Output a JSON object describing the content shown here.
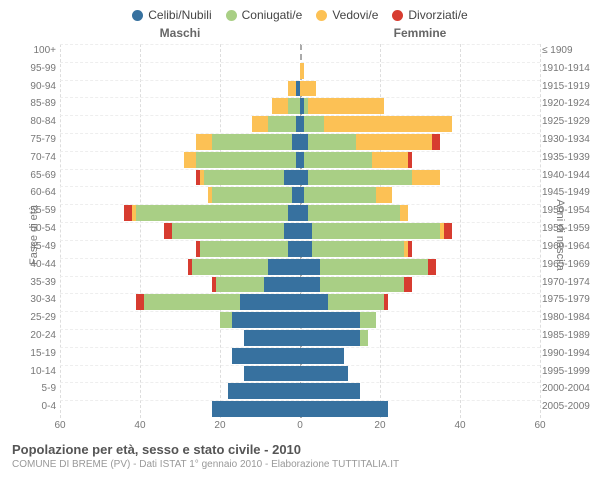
{
  "legend": {
    "items": [
      {
        "label": "Celibi/Nubili",
        "color": "#37719f"
      },
      {
        "label": "Coniugati/e",
        "color": "#a9cf85"
      },
      {
        "label": "Vedovi/e",
        "color": "#fcc155"
      },
      {
        "label": "Divorziati/e",
        "color": "#d73c30"
      }
    ]
  },
  "top_labels": {
    "male": "Maschi",
    "female": "Femmine"
  },
  "axis_titles": {
    "left": "Fasce di età",
    "right": "Anni di nascita"
  },
  "colors": {
    "single": "#37719f",
    "married": "#a9cf85",
    "widowed": "#fcc155",
    "divorced": "#d73c30"
  },
  "x_axis": {
    "max": 60,
    "ticks": [
      60,
      40,
      20,
      0,
      20,
      40,
      60
    ]
  },
  "rows": [
    {
      "age": "100+",
      "birth": "≤ 1909",
      "m": [
        0,
        0,
        0,
        0
      ],
      "f": [
        0,
        0,
        0,
        0
      ]
    },
    {
      "age": "95-99",
      "birth": "1910-1914",
      "m": [
        0,
        0,
        0,
        0
      ],
      "f": [
        0,
        0,
        1,
        0
      ]
    },
    {
      "age": "90-94",
      "birth": "1915-1919",
      "m": [
        1,
        0,
        2,
        0
      ],
      "f": [
        0,
        0,
        4,
        0
      ]
    },
    {
      "age": "85-89",
      "birth": "1920-1924",
      "m": [
        0,
        3,
        4,
        0
      ],
      "f": [
        1,
        1,
        19,
        0
      ]
    },
    {
      "age": "80-84",
      "birth": "1925-1929",
      "m": [
        1,
        7,
        4,
        0
      ],
      "f": [
        1,
        5,
        32,
        0
      ]
    },
    {
      "age": "75-79",
      "birth": "1930-1934",
      "m": [
        2,
        20,
        4,
        0
      ],
      "f": [
        2,
        12,
        19,
        2
      ]
    },
    {
      "age": "70-74",
      "birth": "1935-1939",
      "m": [
        1,
        25,
        3,
        0
      ],
      "f": [
        1,
        17,
        9,
        1
      ]
    },
    {
      "age": "65-69",
      "birth": "1940-1944",
      "m": [
        4,
        20,
        1,
        1
      ],
      "f": [
        2,
        26,
        7,
        0
      ]
    },
    {
      "age": "60-64",
      "birth": "1945-1949",
      "m": [
        2,
        20,
        1,
        0
      ],
      "f": [
        1,
        18,
        4,
        0
      ]
    },
    {
      "age": "55-59",
      "birth": "1950-1954",
      "m": [
        3,
        38,
        1,
        2
      ],
      "f": [
        2,
        23,
        2,
        0
      ]
    },
    {
      "age": "50-54",
      "birth": "1955-1959",
      "m": [
        4,
        28,
        0,
        2
      ],
      "f": [
        3,
        32,
        1,
        2
      ]
    },
    {
      "age": "45-49",
      "birth": "1960-1964",
      "m": [
        3,
        22,
        0,
        1
      ],
      "f": [
        3,
        23,
        1,
        1
      ]
    },
    {
      "age": "40-44",
      "birth": "1965-1969",
      "m": [
        8,
        19,
        0,
        1
      ],
      "f": [
        5,
        27,
        0,
        2
      ]
    },
    {
      "age": "35-39",
      "birth": "1970-1974",
      "m": [
        9,
        12,
        0,
        1
      ],
      "f": [
        5,
        21,
        0,
        2
      ]
    },
    {
      "age": "30-34",
      "birth": "1975-1979",
      "m": [
        15,
        24,
        0,
        2
      ],
      "f": [
        7,
        14,
        0,
        1
      ]
    },
    {
      "age": "25-29",
      "birth": "1980-1984",
      "m": [
        17,
        3,
        0,
        0
      ],
      "f": [
        15,
        4,
        0,
        0
      ]
    },
    {
      "age": "20-24",
      "birth": "1985-1989",
      "m": [
        14,
        0,
        0,
        0
      ],
      "f": [
        15,
        2,
        0,
        0
      ]
    },
    {
      "age": "15-19",
      "birth": "1990-1994",
      "m": [
        17,
        0,
        0,
        0
      ],
      "f": [
        11,
        0,
        0,
        0
      ]
    },
    {
      "age": "10-14",
      "birth": "1995-1999",
      "m": [
        14,
        0,
        0,
        0
      ],
      "f": [
        12,
        0,
        0,
        0
      ]
    },
    {
      "age": "5-9",
      "birth": "2000-2004",
      "m": [
        18,
        0,
        0,
        0
      ],
      "f": [
        15,
        0,
        0,
        0
      ]
    },
    {
      "age": "0-4",
      "birth": "2005-2009",
      "m": [
        22,
        0,
        0,
        0
      ],
      "f": [
        22,
        0,
        0,
        0
      ]
    }
  ],
  "footer": {
    "title": "Popolazione per età, sesso e stato civile - 2010",
    "subtitle": "COMUNE DI BREME (PV) - Dati ISTAT 1° gennaio 2010 - Elaborazione TUTTITALIA.IT"
  }
}
